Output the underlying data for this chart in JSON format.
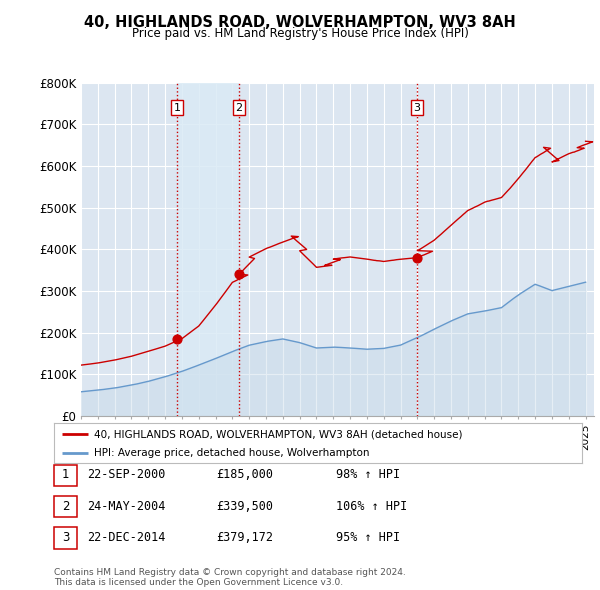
{
  "title": "40, HIGHLANDS ROAD, WOLVERHAMPTON, WV3 8AH",
  "subtitle": "Price paid vs. HM Land Registry's House Price Index (HPI)",
  "ylim": [
    0,
    800000
  ],
  "yticks": [
    0,
    100000,
    200000,
    300000,
    400000,
    500000,
    600000,
    700000,
    800000
  ],
  "ytick_labels": [
    "£0",
    "£100K",
    "£200K",
    "£300K",
    "£400K",
    "£500K",
    "£600K",
    "£700K",
    "£800K"
  ],
  "background_color": "#ffffff",
  "plot_bg_color": "#dce6f1",
  "grid_color": "#ffffff",
  "sale_dates": [
    2000.72,
    2004.4,
    2014.98
  ],
  "sale_prices": [
    185000,
    339500,
    379172
  ],
  "sale_labels": [
    "1",
    "2",
    "3"
  ],
  "vline_color": "#cc0000",
  "red_line_color": "#cc0000",
  "blue_line_color": "#6699cc",
  "blue_fill_color": "#c8daea",
  "highlight_color": "#daeaf5",
  "legend_label_red": "40, HIGHLANDS ROAD, WOLVERHAMPTON, WV3 8AH (detached house)",
  "legend_label_blue": "HPI: Average price, detached house, Wolverhampton",
  "table_entries": [
    {
      "num": "1",
      "date": "22-SEP-2000",
      "price": "£185,000",
      "hpi": "98% ↑ HPI"
    },
    {
      "num": "2",
      "date": "24-MAY-2004",
      "price": "£339,500",
      "hpi": "106% ↑ HPI"
    },
    {
      "num": "3",
      "date": "22-DEC-2014",
      "price": "£379,172",
      "hpi": "95% ↑ HPI"
    }
  ],
  "footer": "Contains HM Land Registry data © Crown copyright and database right 2024.\nThis data is licensed under the Open Government Licence v3.0.",
  "xmin": 1995.0,
  "xmax": 2025.5
}
